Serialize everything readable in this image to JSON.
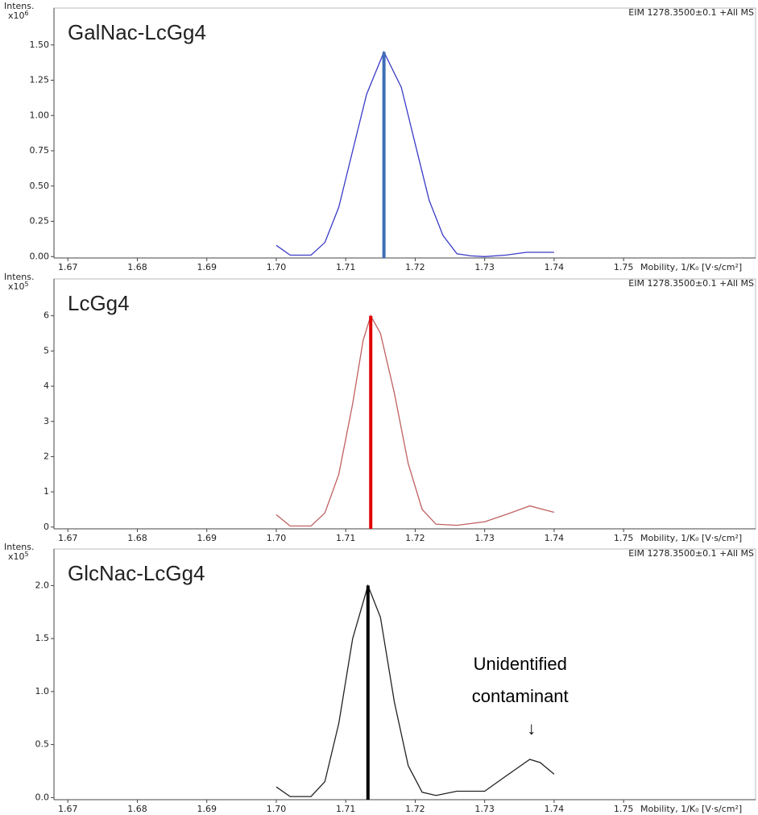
{
  "chart_data": [
    {
      "type": "line",
      "title": "GalNac-LcGg4",
      "title_color": "#2f5597",
      "y_label": "Intens.",
      "y_multiplier": "x10",
      "y_exponent": "6",
      "corner_text": "EIM 1278.3500±0.1 +All MS",
      "x_label": "Mobility, 1/K₀ [V·s/cm²]",
      "xlim": [
        1.668,
        1.769
      ],
      "xticks": [
        1.67,
        1.68,
        1.69,
        {
          "value": 1.7,
          "label": "1.70"
        },
        1.71,
        1.72,
        1.73,
        1.74,
        1.75
      ],
      "ylim": [
        -0.01,
        1.75
      ],
      "yticks": [
        {
          "value": 0,
          "label": "0.00"
        },
        {
          "value": 0.25,
          "label": "0.25"
        },
        {
          "value": 0.5,
          "label": "0.50"
        },
        {
          "value": 0.75,
          "label": "0.75"
        },
        {
          "value": 1,
          "label": "1.00"
        },
        {
          "value": 1.25,
          "label": "1.25"
        },
        {
          "value": 1.5,
          "label": "1.50"
        }
      ],
      "x": [
        1.7,
        1.702,
        1.705,
        1.707,
        1.709,
        1.711,
        1.713,
        1.7155,
        1.718,
        1.72,
        1.722,
        1.724,
        1.726,
        1.728,
        1.73,
        1.733,
        1.736,
        1.74
      ],
      "series": [
        {
          "color": "#3b3bc8",
          "values": [
            0.08,
            0.01,
            0.01,
            0.1,
            0.35,
            0.75,
            1.15,
            1.45,
            1.2,
            0.8,
            0.4,
            0.15,
            0.02,
            0.005,
            0,
            0.01,
            0.03,
            0.03
          ]
        }
      ],
      "peak": {
        "x": 1.7155,
        "value": 1.45,
        "color": "#3d6fb5"
      }
    },
    {
      "type": "line",
      "title": "LcGg4",
      "title_color": "#e0201a",
      "y_label": "Intens.",
      "y_multiplier": "x10",
      "y_exponent": "5",
      "corner_text": "EIM 1278.3500±0.1 +All MS",
      "x_label": "Mobility, 1/K₀ [V·s/cm²]",
      "xlim": [
        1.668,
        1.769
      ],
      "xticks": [
        1.67,
        1.68,
        1.69,
        {
          "value": 1.7,
          "label": "1.70"
        },
        1.71,
        1.72,
        1.73,
        1.74,
        1.75
      ],
      "ylim": [
        -0.05,
        7.0
      ],
      "yticks": [
        0,
        1,
        2,
        3,
        4,
        5,
        6
      ],
      "x": [
        1.7,
        1.702,
        1.705,
        1.707,
        1.709,
        1.711,
        1.7125,
        1.7136,
        1.715,
        1.717,
        1.719,
        1.721,
        1.723,
        1.726,
        1.73,
        1.733,
        1.7365,
        1.74
      ],
      "series": [
        {
          "color": "#c06060",
          "values": [
            0.35,
            0.03,
            0.03,
            0.4,
            1.5,
            3.5,
            5.3,
            6.0,
            5.5,
            3.8,
            1.8,
            0.5,
            0.08,
            0.05,
            0.15,
            0.35,
            0.6,
            0.42
          ]
        }
      ],
      "peak": {
        "x": 1.7136,
        "value": 6.0,
        "color": "#e00000"
      }
    },
    {
      "type": "line",
      "title": "GlcNac-LcGg4",
      "title_color": "#000000",
      "y_label": "Intens.",
      "y_multiplier": "x10",
      "y_exponent": "5",
      "corner_text": "EIM 1278.3500±0.1 +All MS",
      "x_label": "Mobility, 1/K₀ [V·s/cm²]",
      "xlim": [
        1.668,
        1.769
      ],
      "xticks": [
        1.67,
        1.68,
        1.69,
        {
          "value": 1.7,
          "label": "1.70"
        },
        1.71,
        1.72,
        1.73,
        1.74,
        1.75
      ],
      "ylim": [
        -0.02,
        2.33
      ],
      "yticks": [
        {
          "value": 0,
          "label": "0.0"
        },
        0.5,
        {
          "value": 1,
          "label": "1.0"
        },
        1.5,
        {
          "value": 2,
          "label": "2.0"
        }
      ],
      "x": [
        1.7,
        1.702,
        1.705,
        1.707,
        1.709,
        1.711,
        1.7132,
        1.715,
        1.717,
        1.719,
        1.721,
        1.723,
        1.726,
        1.73,
        1.733,
        1.7365,
        1.738,
        1.74
      ],
      "series": [
        {
          "color": "#222222",
          "values": [
            0.1,
            0.01,
            0.01,
            0.15,
            0.7,
            1.5,
            2.0,
            1.7,
            0.9,
            0.3,
            0.05,
            0.02,
            0.06,
            0.06,
            0.2,
            0.36,
            0.33,
            0.22
          ]
        }
      ],
      "peak": {
        "x": 1.7132,
        "value": 2.0,
        "color": "#000000"
      },
      "annotation": {
        "lines": [
          "Unidentified",
          "contaminant"
        ],
        "arrow": "↓",
        "x": 1.7365
      }
    }
  ]
}
